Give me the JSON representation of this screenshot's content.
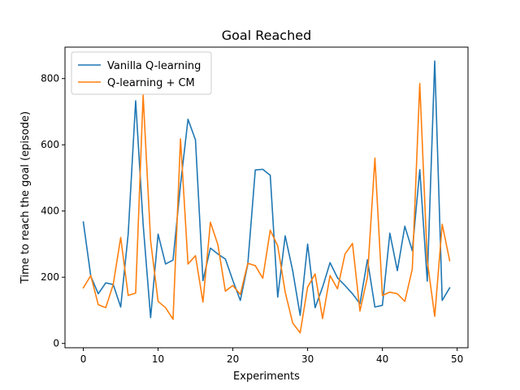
{
  "chart_data": {
    "type": "line",
    "title": "Goal Reached",
    "xlabel": "Experiments",
    "ylabel": "Time to reach the goal (episode)",
    "xlim": [
      -2.45,
      51.45
    ],
    "ylim": [
      -13,
      895
    ],
    "x_ticks": [
      0,
      10,
      20,
      30,
      40,
      50
    ],
    "y_ticks": [
      0,
      200,
      400,
      600,
      800
    ],
    "grid": false,
    "legend_position": "top-left",
    "x": [
      0,
      1,
      2,
      3,
      4,
      5,
      6,
      7,
      8,
      9,
      10,
      11,
      12,
      13,
      14,
      15,
      16,
      17,
      18,
      19,
      20,
      21,
      22,
      23,
      24,
      25,
      26,
      27,
      28,
      29,
      30,
      31,
      32,
      33,
      34,
      35,
      36,
      37,
      38,
      39,
      40,
      41,
      42,
      43,
      44,
      45,
      46,
      47,
      48,
      49
    ],
    "series": [
      {
        "name": "Vanilla Q-learning",
        "color": "#1f77b4",
        "values": [
          367,
          203,
          150,
          183,
          178,
          110,
          330,
          733,
          360,
          78,
          330,
          240,
          252,
          480,
          677,
          615,
          190,
          288,
          270,
          255,
          190,
          130,
          240,
          524,
          526,
          508,
          140,
          325,
          220,
          85,
          300,
          108,
          170,
          244,
          198,
          175,
          150,
          120,
          253,
          110,
          115,
          333,
          220,
          354,
          280,
          525,
          188,
          853,
          130,
          168
        ]
      },
      {
        "name": "Q-learning + CM",
        "color": "#ff7f0e",
        "values": [
          168,
          205,
          117,
          108,
          178,
          320,
          145,
          152,
          750,
          310,
          127,
          108,
          73,
          618,
          240,
          265,
          125,
          366,
          298,
          158,
          175,
          148,
          242,
          235,
          197,
          342,
          295,
          155,
          62,
          32,
          170,
          210,
          75,
          205,
          165,
          270,
          302,
          98,
          200,
          560,
          145,
          155,
          150,
          127,
          225,
          785,
          250,
          82,
          360,
          250
        ]
      }
    ]
  }
}
